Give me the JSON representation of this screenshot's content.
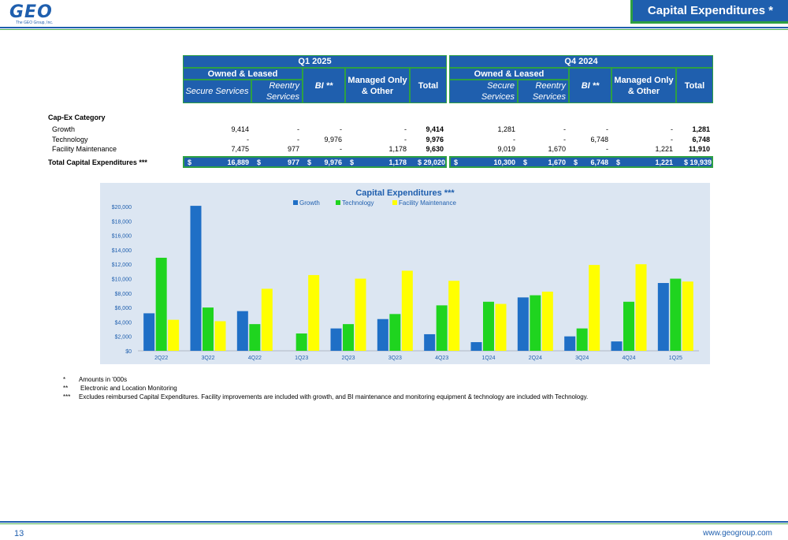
{
  "header": {
    "logo_text": "GEO",
    "logo_subtext": "The GEO Group, Inc.",
    "title": "Capital Expenditures *"
  },
  "table": {
    "periods": [
      "Q1 2025",
      "Q4 2024"
    ],
    "group_label": "Owned & Leased",
    "col_secure": "Secure Services",
    "col_secure_split": [
      "Secure",
      "Services"
    ],
    "col_reentry": [
      "Reentry",
      "Services"
    ],
    "col_bi": "BI **",
    "col_managed": [
      "Managed Only",
      "& Other"
    ],
    "col_total": "Total",
    "category_title": "Cap-Ex Category",
    "rows": [
      {
        "label": "Growth",
        "q1": [
          "9,414",
          "-",
          "-",
          "-",
          "9,414"
        ],
        "q4": [
          "1,281",
          "-",
          "-",
          "-",
          "1,281"
        ]
      },
      {
        "label": "Technology",
        "q1": [
          "-",
          "-",
          "9,976",
          "-",
          "9,976"
        ],
        "q4": [
          "-",
          "-",
          "6,748",
          "-",
          "6,748"
        ]
      },
      {
        "label": "Facility Maintenance",
        "q1": [
          "7,475",
          "977",
          "-",
          "1,178",
          "9,630"
        ],
        "q4": [
          "9,019",
          "1,670",
          "-",
          "1,221",
          "11,910"
        ]
      }
    ],
    "total_label": "Total Capital Expenditures ***",
    "totals_q1": [
      "16,889",
      "977",
      "9,976",
      "1,178",
      "29,020"
    ],
    "totals_q4": [
      "10,300",
      "1,670",
      "6,748",
      "1,221",
      "19,939"
    ],
    "currency": "$"
  },
  "chart_data": {
    "type": "bar",
    "title": "Capital Expenditures ***",
    "categories": [
      "2Q22",
      "3Q22",
      "4Q22",
      "1Q23",
      "2Q23",
      "3Q23",
      "4Q23",
      "1Q24",
      "2Q24",
      "3Q24",
      "4Q24",
      "1Q25"
    ],
    "series": [
      {
        "name": "Growth",
        "color": "#1f6fc6",
        "values": [
          5200,
          20100,
          5500,
          0,
          3100,
          4400,
          2300,
          1200,
          7400,
          2000,
          1300,
          9400
        ]
      },
      {
        "name": "Technology",
        "color": "#1fd41f",
        "values": [
          12900,
          6000,
          3700,
          2400,
          3700,
          5100,
          6300,
          6800,
          7700,
          3100,
          6800,
          10000
        ]
      },
      {
        "name": "Facility Maintenance",
        "color": "#ffff00",
        "values": [
          4300,
          4100,
          8600,
          10500,
          10000,
          11100,
          9700,
          6500,
          8200,
          11900,
          12000,
          9600
        ]
      }
    ],
    "ylim": [
      0,
      20000
    ],
    "yticks": [
      "$0",
      "$2,000",
      "$4,000",
      "$6,000",
      "$8,000",
      "$10,000",
      "$12,000",
      "$14,000",
      "$16,000",
      "$18,000",
      "$20,000"
    ],
    "legend": "top-center",
    "grid": false
  },
  "footnotes": [
    {
      "mark": "*",
      "text": "Amounts in '000s"
    },
    {
      "mark": "**",
      "text": "Electronic and Location Monitoring"
    },
    {
      "mark": "***",
      "text": "Excludes reimbursed Capital Expenditures. Facility improvements are included with growth, and BI maintenance and monitoring equipment & technology are included with Technology."
    }
  ],
  "footer": {
    "page_number": "13",
    "website": "www.geogroup.com"
  },
  "colors": {
    "brand_blue": "#1f5fae",
    "accent_green": "#2ea043",
    "chart_bg": "#dce6f2"
  }
}
